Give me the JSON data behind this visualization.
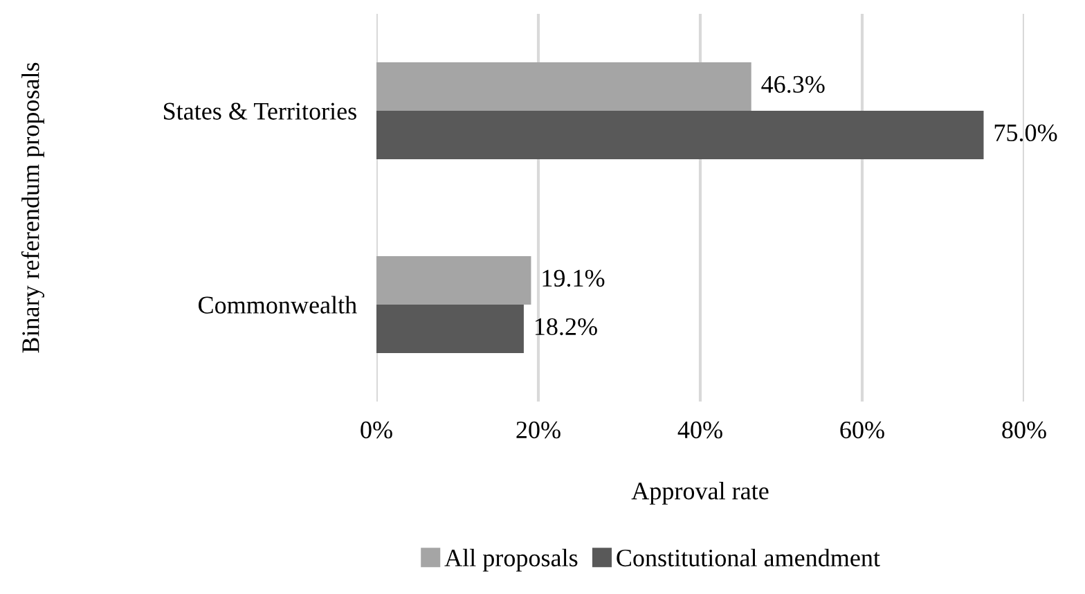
{
  "chart_data": {
    "type": "bar",
    "orientation": "horizontal",
    "categories": [
      "States & Territories",
      "Commonwealth"
    ],
    "series": [
      {
        "name": "All proposals",
        "color": "#a5a5a5",
        "values": [
          46.3,
          19.1
        ],
        "value_labels": [
          "46.3%",
          "19.1%"
        ]
      },
      {
        "name": "Constitutional amendment",
        "color": "#595959",
        "values": [
          75.0,
          18.2
        ],
        "value_labels": [
          "75.0%",
          "18.2%"
        ]
      }
    ],
    "xlim": [
      0,
      80
    ],
    "xticks": [
      {
        "value": 0,
        "label": "0%"
      },
      {
        "value": 20,
        "label": "20%"
      },
      {
        "value": 40,
        "label": "40%"
      },
      {
        "value": 60,
        "label": "60%"
      },
      {
        "value": 80,
        "label": "80%"
      }
    ],
    "xlabel": "Approval rate",
    "ylabel": "Binary referendum proposals",
    "grid": "x",
    "legend": "bottom"
  }
}
